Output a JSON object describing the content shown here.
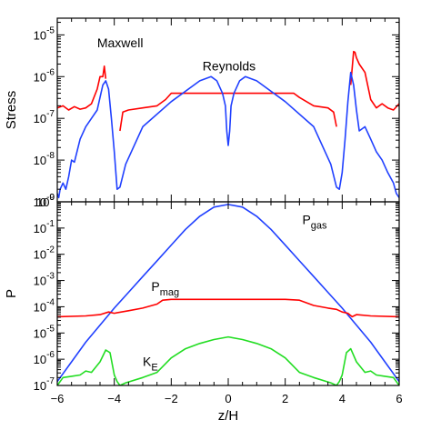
{
  "chart_data": [
    {
      "type": "line",
      "xlabel": "z/H",
      "ylabel": "Stress",
      "yscale": "log",
      "xlim": [
        -6,
        6
      ],
      "ylim_exponent": [
        -9,
        -4.6
      ],
      "y_tick_base": "10",
      "y_tick_exponents": [
        "-9",
        "-8",
        "-7",
        "-6",
        "-5"
      ],
      "x_ticks": [
        "-6",
        "-4",
        "-2",
        "0",
        "2",
        "4",
        "6"
      ],
      "grid": false,
      "annotations": [
        {
          "text": "Maxwell",
          "x": -4.6,
          "y_exponent": -5.3
        },
        {
          "text": "Reynolds",
          "x": -0.9,
          "y_exponent": -5.85
        }
      ],
      "series": [
        {
          "name": "Maxwell",
          "color": "#ff0000",
          "x": [
            -6.0,
            -5.8,
            -5.6,
            -5.4,
            -5.2,
            -5.0,
            -4.8,
            -4.6,
            -4.5,
            -4.4,
            -4.35,
            -4.3,
            null,
            -3.8,
            -3.7,
            -3.5,
            -3.0,
            -2.5,
            -2.2,
            -2.0,
            -1.0,
            0.0,
            1.0,
            2.0,
            2.3,
            2.5,
            3.0,
            3.5,
            3.7,
            3.8,
            null,
            4.3,
            4.4,
            4.45,
            4.5,
            4.6,
            4.8,
            5.0,
            5.2,
            5.4,
            5.6,
            5.8,
            6.0
          ],
          "values": [
            -6.75,
            -6.7,
            -6.8,
            -6.72,
            -6.78,
            -6.75,
            -6.65,
            -6.3,
            -6.0,
            -6.0,
            -5.75,
            -6.05,
            null,
            -7.3,
            -6.85,
            -6.8,
            -6.75,
            -6.7,
            -6.55,
            -6.4,
            -6.4,
            -6.4,
            -6.4,
            -6.4,
            -6.4,
            -6.5,
            -6.7,
            -6.75,
            -6.85,
            -7.2,
            null,
            -6.2,
            -5.4,
            -5.42,
            -5.55,
            -5.7,
            -5.9,
            -6.55,
            -6.75,
            -6.65,
            -6.75,
            -6.8,
            -6.65
          ]
        },
        {
          "name": "Reynolds",
          "color": "#2040ff",
          "x": [
            -6.0,
            -5.95,
            -5.9,
            -5.8,
            -5.7,
            -5.6,
            -5.5,
            -5.4,
            -5.2,
            -5.0,
            -4.8,
            -4.6,
            -4.5,
            -4.4,
            -4.3,
            -4.2,
            -4.1,
            -4.0,
            -3.9,
            -3.8,
            -3.6,
            -3.0,
            -2.0,
            -1.0,
            -0.6,
            -0.4,
            -0.2,
            -0.1,
            -0.05,
            0.0,
            0.05,
            0.1,
            0.2,
            0.4,
            0.6,
            1.0,
            2.0,
            3.0,
            3.6,
            3.8,
            3.9,
            4.0,
            4.1,
            4.2,
            4.3,
            4.4,
            4.5,
            4.6,
            4.8,
            5.0,
            5.2,
            5.4,
            5.6,
            5.8,
            5.9,
            6.0
          ],
          "values": [
            -8.8,
            -8.9,
            -8.7,
            -8.55,
            -8.7,
            -8.4,
            -8.0,
            -8.05,
            -7.5,
            -7.2,
            -7.0,
            -6.8,
            -6.5,
            -6.2,
            -6.1,
            -6.3,
            -7.0,
            -7.8,
            -8.7,
            -8.65,
            -8.1,
            -7.2,
            -6.6,
            -6.1,
            -6.0,
            -6.1,
            -6.4,
            -6.7,
            -7.3,
            -7.65,
            -7.3,
            -6.7,
            -6.4,
            -6.1,
            -6.0,
            -6.1,
            -6.6,
            -7.2,
            -8.1,
            -8.65,
            -8.7,
            -8.3,
            -7.5,
            -6.6,
            -5.9,
            -6.2,
            -6.8,
            -7.3,
            -7.2,
            -7.5,
            -7.8,
            -8.0,
            -8.3,
            -8.55,
            -8.8,
            -8.9
          ]
        }
      ]
    },
    {
      "type": "line",
      "xlabel": "z/H",
      "ylabel": "P",
      "yscale": "log",
      "xlim": [
        -6,
        6
      ],
      "ylim_exponent": [
        -7,
        0
      ],
      "y_tick_base": "10",
      "y_tick_exponents": [
        "-7",
        "-6",
        "-5",
        "-4",
        "-3",
        "-2",
        "-1",
        "0"
      ],
      "x_ticks": [
        "-6",
        "-4",
        "-2",
        "0",
        "2",
        "4",
        "6"
      ],
      "grid": false,
      "annotations": [
        {
          "text": "P",
          "sub": "gas",
          "x": 2.6,
          "y_exponent": -0.85
        },
        {
          "text": "P",
          "sub": "mag",
          "x": -2.7,
          "y_exponent": -3.4
        },
        {
          "text": "K",
          "sub": "E",
          "x": -3.0,
          "y_exponent": -6.25
        }
      ],
      "series": [
        {
          "name": "Pgas",
          "color": "#2040ff",
          "x": [
            -6.0,
            -5.5,
            -5.0,
            -4.5,
            -4.0,
            -3.5,
            -3.0,
            -2.5,
            -2.0,
            -1.5,
            -1.0,
            -0.5,
            0.0,
            0.5,
            1.0,
            1.5,
            2.0,
            2.5,
            3.0,
            3.5,
            4.0,
            4.5,
            5.0,
            5.5,
            6.0
          ],
          "values": [
            -6.85,
            -6.1,
            -5.35,
            -4.7,
            -4.05,
            -3.45,
            -2.85,
            -2.25,
            -1.65,
            -1.05,
            -0.55,
            -0.2,
            -0.1,
            -0.2,
            -0.55,
            -1.05,
            -1.65,
            -2.25,
            -2.85,
            -3.45,
            -4.05,
            -4.7,
            -5.35,
            -6.1,
            -6.85
          ],
          "sub": "gas"
        },
        {
          "name": "Pmag",
          "color": "#ff0000",
          "x": [
            -6.0,
            -5.0,
            -4.5,
            -4.2,
            -4.0,
            -3.5,
            -3.0,
            -2.5,
            -2.3,
            -2.0,
            -1.0,
            0.0,
            1.0,
            2.0,
            2.5,
            3.0,
            3.5,
            3.8,
            4.0,
            4.2,
            4.35,
            4.5,
            5.0,
            6.0
          ],
          "values": [
            -4.38,
            -4.35,
            -4.3,
            -4.2,
            -4.25,
            -4.15,
            -4.05,
            -3.9,
            -3.75,
            -3.72,
            -3.72,
            -3.72,
            -3.72,
            -3.72,
            -3.75,
            -3.95,
            -4.05,
            -4.1,
            -4.2,
            -4.25,
            -4.38,
            -4.3,
            -4.35,
            -4.38
          ],
          "sub": "mag"
        },
        {
          "name": "KE",
          "color": "#22dd22",
          "x": [
            -6.0,
            -5.8,
            -5.5,
            -5.2,
            -5.0,
            -4.8,
            -4.5,
            -4.3,
            -4.15,
            -4.0,
            -3.9,
            -3.8,
            -3.6,
            -3.0,
            -2.5,
            -2.0,
            -1.5,
            -1.0,
            -0.5,
            0.0,
            0.5,
            1.0,
            1.5,
            2.0,
            2.5,
            3.0,
            3.6,
            3.8,
            3.9,
            4.0,
            4.15,
            4.3,
            4.5,
            4.8,
            5.0,
            5.2,
            5.5,
            5.8,
            6.0
          ],
          "values": [
            -7.0,
            -6.7,
            -6.65,
            -6.6,
            -6.45,
            -6.5,
            -6.1,
            -5.65,
            -5.75,
            -6.6,
            -6.85,
            -7.0,
            -6.9,
            -6.7,
            -6.5,
            -5.95,
            -5.6,
            -5.4,
            -5.25,
            -5.15,
            -5.25,
            -5.4,
            -5.6,
            -5.95,
            -6.5,
            -6.7,
            -6.9,
            -7.0,
            -6.85,
            -6.6,
            -5.75,
            -5.6,
            -6.1,
            -6.5,
            -6.45,
            -6.6,
            -6.65,
            -6.7,
            -7.0
          ],
          "sub": "E"
        }
      ]
    }
  ]
}
